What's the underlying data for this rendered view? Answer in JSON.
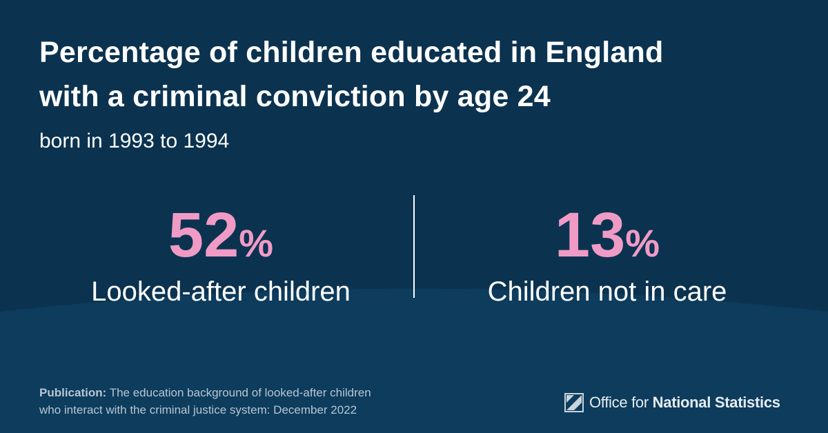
{
  "header": {
    "title_line1": "Percentage of children educated in England",
    "title_line2": "with a criminal conviction by age 24",
    "subtitle": "born in 1993 to 1994"
  },
  "stats": [
    {
      "value": 52,
      "unit": "%",
      "label": "Looked-after children"
    },
    {
      "value": 13,
      "unit": "%",
      "label": "Children not in care"
    }
  ],
  "footer": {
    "publication_label": "Publication:",
    "publication_line1": "The education background of looked-after children",
    "publication_line2": "who interact with the criminal justice system: December 2022"
  },
  "logo": {
    "light": "Office for",
    "bold": "National Statistics"
  }
}
